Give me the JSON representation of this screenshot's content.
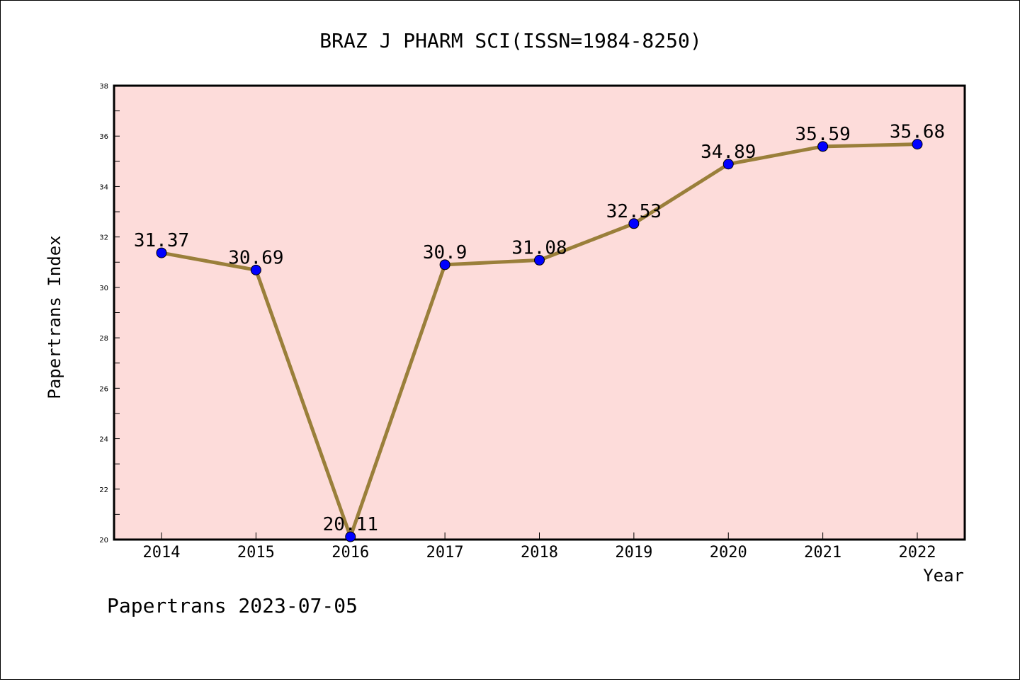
{
  "chart_data": {
    "type": "line",
    "title": "BRAZ J PHARM SCI(ISSN=1984-8250)",
    "xlabel": "Year",
    "ylabel": "Papertrans Index",
    "categories": [
      "2014",
      "2015",
      "2016",
      "2017",
      "2018",
      "2019",
      "2020",
      "2021",
      "2022"
    ],
    "series": [
      {
        "values": [
          31.37,
          30.69,
          20.11,
          30.9,
          31.08,
          32.53,
          34.89,
          35.59,
          35.68
        ],
        "value_labels": [
          "31.37",
          "30.69",
          "20.11",
          "30.9",
          "31.08",
          "32.53",
          "34.89",
          "35.59",
          "35.68"
        ],
        "line_color": "#9a7f3a",
        "marker_color": "#0000ff"
      }
    ],
    "ylim": [
      20,
      38
    ],
    "yticks": [
      "20",
      "22",
      "24",
      "26",
      "28",
      "30",
      "32",
      "34",
      "36",
      "38"
    ],
    "plot_background": "#fddcda",
    "grid": false,
    "legend": "none"
  },
  "footer": "Papertrans 2023-07-05"
}
